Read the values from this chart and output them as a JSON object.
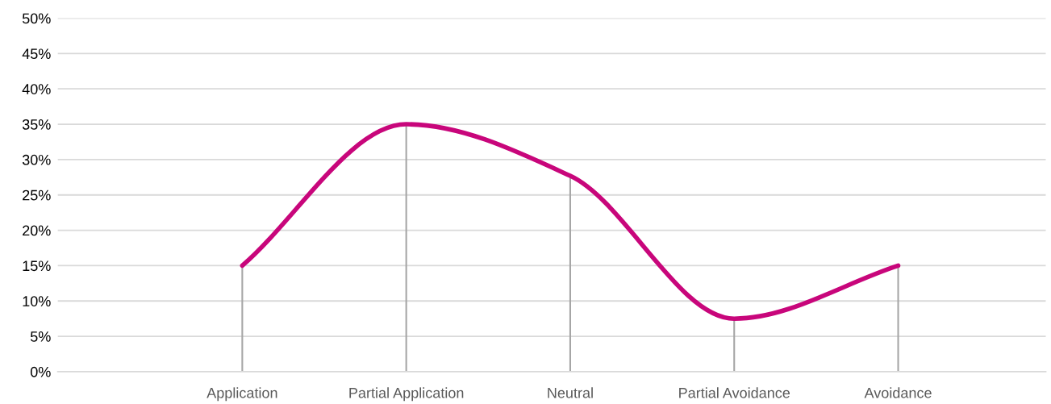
{
  "chart_data": {
    "type": "line",
    "categories": [
      "Application",
      "Partial Application",
      "Neutral",
      "Partial Avoidance",
      "Avoidance"
    ],
    "series": [
      {
        "color": "#c8067b",
        "values": [
          15,
          35,
          27.7,
          7.5,
          15
        ],
        "errors": [
          [
            0,
            15
          ],
          [
            0,
            35
          ],
          [
            0,
            27.7
          ],
          [
            0,
            7.5
          ],
          [
            0,
            15
          ]
        ]
      }
    ],
    "ylim": [
      0,
      50
    ],
    "yticks": [
      {
        "value": 0,
        "label": "0%"
      },
      {
        "value": 5,
        "label": "5%"
      },
      {
        "value": 10,
        "label": "10%"
      },
      {
        "value": 15,
        "label": "15%"
      },
      {
        "value": 20,
        "label": "20%"
      },
      {
        "value": 25,
        "label": "25%"
      },
      {
        "value": 30,
        "label": "30%"
      },
      {
        "value": 35,
        "label": "35%"
      },
      {
        "value": 40,
        "label": "40%"
      },
      {
        "value": 45,
        "label": "45%"
      },
      {
        "value": 50,
        "label": "50%"
      }
    ],
    "grid": "y",
    "line_style": "solid",
    "marker": "none"
  }
}
